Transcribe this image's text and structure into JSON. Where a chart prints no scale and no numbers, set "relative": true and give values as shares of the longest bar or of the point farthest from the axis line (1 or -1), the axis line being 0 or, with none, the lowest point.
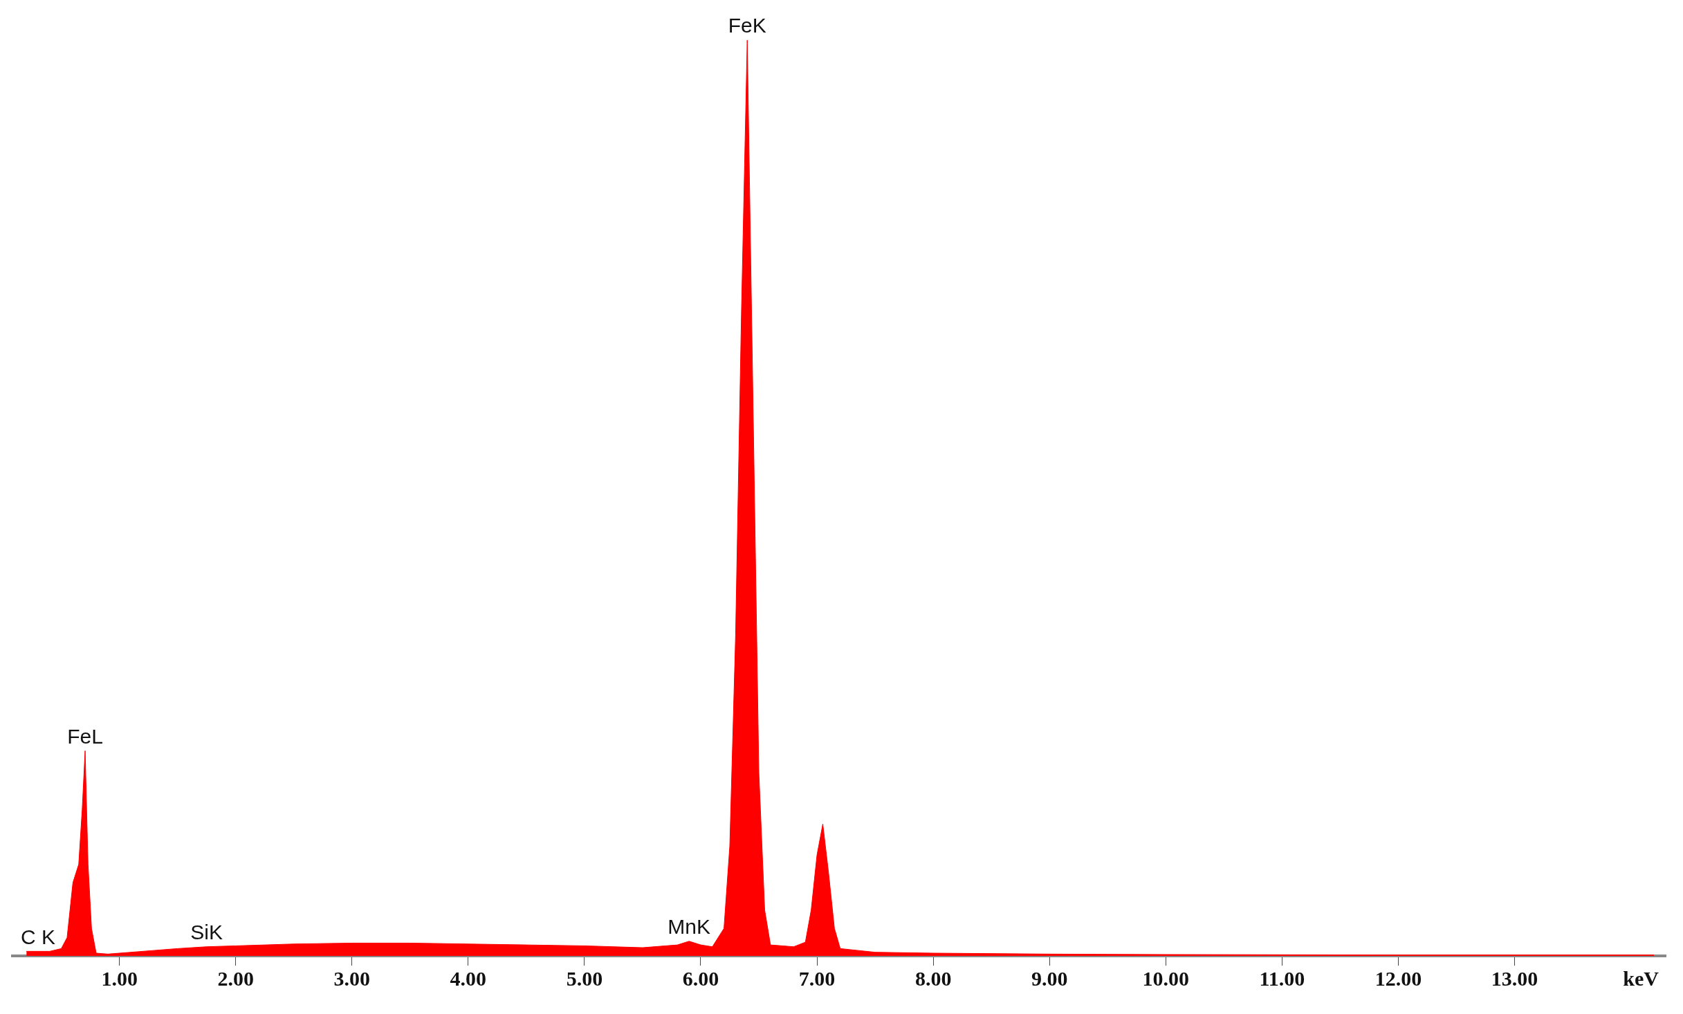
{
  "chart_data": {
    "type": "area",
    "relative": true,
    "xlabel": "keV",
    "xlim": [
      0.08,
      14.3
    ],
    "xticks": [
      {
        "value": 1,
        "label": "1.00"
      },
      {
        "value": 2,
        "label": "2.00"
      },
      {
        "value": 3,
        "label": "3.00"
      },
      {
        "value": 4,
        "label": "4.00"
      },
      {
        "value": 5,
        "label": "5.00"
      },
      {
        "value": 6,
        "label": "6.00"
      },
      {
        "value": 7,
        "label": "7.00"
      },
      {
        "value": 8,
        "label": "8.00"
      },
      {
        "value": 9,
        "label": "9.00"
      },
      {
        "value": 10,
        "label": "10.00"
      },
      {
        "value": 11,
        "label": "11.00"
      },
      {
        "value": 12,
        "label": "12.00"
      },
      {
        "value": 13,
        "label": "13.00"
      }
    ],
    "x": [
      0.2,
      0.3,
      0.4,
      0.5,
      0.55,
      0.6,
      0.65,
      0.68,
      0.705,
      0.73,
      0.76,
      0.8,
      0.9,
      1.0,
      1.2,
      1.5,
      1.75,
      2.0,
      2.5,
      3.0,
      3.5,
      4.0,
      4.5,
      5.0,
      5.5,
      5.8,
      5.9,
      6.0,
      6.1,
      6.2,
      6.25,
      6.3,
      6.35,
      6.4,
      6.45,
      6.5,
      6.55,
      6.6,
      6.8,
      6.9,
      6.95,
      7.0,
      7.05,
      7.1,
      7.15,
      7.2,
      7.5,
      8,
      9,
      10,
      12,
      14.2
    ],
    "series": [
      {
        "color": "#ff0000",
        "values": [
          0.005,
          0.005,
          0.005,
          0.008,
          0.02,
          0.08,
          0.1,
          0.16,
          0.224,
          0.1,
          0.03,
          0.003,
          0.002,
          0.003,
          0.005,
          0.008,
          0.01,
          0.011,
          0.013,
          0.014,
          0.014,
          0.013,
          0.012,
          0.011,
          0.009,
          0.012,
          0.016,
          0.012,
          0.01,
          0.03,
          0.12,
          0.35,
          0.7,
          1,
          0.6,
          0.2,
          0.05,
          0.012,
          0.01,
          0.015,
          0.05,
          0.11,
          0.144,
          0.09,
          0.03,
          0.008,
          0.004,
          0.003,
          0.002,
          0.0015,
          0.001,
          0.001
        ]
      }
    ],
    "annotations": [
      {
        "text": "C K",
        "x": 0.3,
        "y": 0.005
      },
      {
        "text": "FeL",
        "x": 0.705,
        "y": 0.224
      },
      {
        "text": "SiK",
        "x": 1.75,
        "y": 0.01
      },
      {
        "text": "MnK",
        "x": 5.9,
        "y": 0.016
      },
      {
        "text": "FeK",
        "x": 6.4,
        "y": 1.0
      }
    ]
  }
}
